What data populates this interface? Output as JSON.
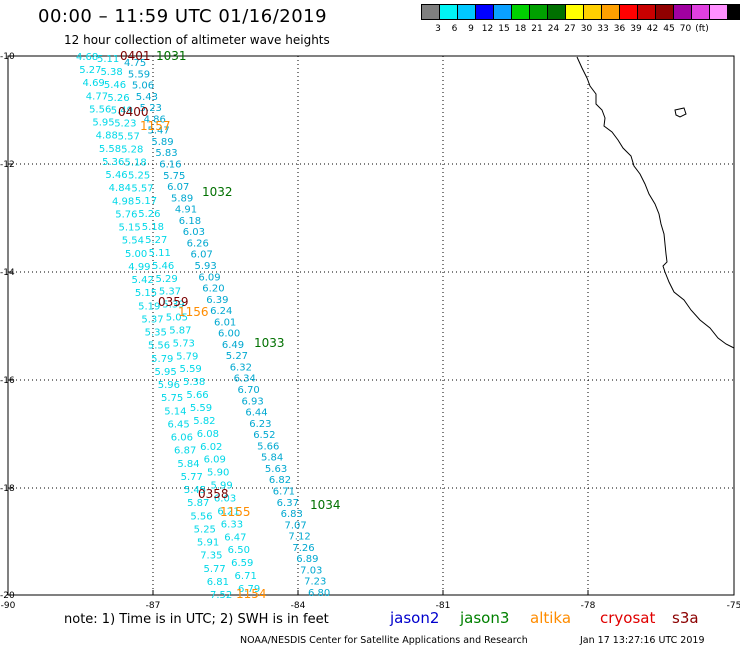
{
  "header": {
    "title": "00:00 – 11:59 UTC 01/16/2019",
    "subtitle": "12 hour collection of altimeter wave heights"
  },
  "legend": {
    "colors": [
      "#7f7f7f",
      "#00f5f5",
      "#00c8ff",
      "#0000ff",
      "#0aa0ff",
      "#00d000",
      "#00a000",
      "#007000",
      "#ffff00",
      "#ffd000",
      "#ffa000",
      "#ff0000",
      "#c80000",
      "#900000",
      "#a000a0",
      "#e040e0",
      "#ff90ff",
      "#000000"
    ],
    "labels": [
      "3",
      "6",
      "9",
      "12",
      "15",
      "18",
      "21",
      "24",
      "27",
      "30",
      "33",
      "36",
      "39",
      "42",
      "45",
      "70",
      "(ft)"
    ]
  },
  "axes": {
    "lat_labels": [
      "-10",
      "-12",
      "-14",
      "-16",
      "-18",
      "-20"
    ],
    "lon_labels": [
      "-90",
      "-87",
      "-84",
      "-81",
      "-78",
      "-75"
    ]
  },
  "tracks": [
    {
      "color": "#00d8e8",
      "id": "track-a",
      "values": [
        "4.68",
        "5.27",
        "4.69",
        "4.77",
        "5.56",
        "5.95",
        "4.88",
        "5.58",
        "5.36",
        "5.46",
        "4.84",
        "4.98",
        "5.76",
        "5.15",
        "5.54",
        "5.00",
        "4.99",
        "5.42",
        "5.15",
        "5.19",
        "5.37",
        "5.35",
        "5.56",
        "5.79",
        "5.95",
        "5.96",
        "5.75",
        "5.14",
        "6.45",
        "6.06",
        "6.87",
        "5.84",
        "5.77",
        "5.45",
        "5.87",
        "5.56",
        "5.25",
        "5.91",
        "7.35",
        "5.77",
        "6.81",
        "7.52"
      ]
    },
    {
      "color": "#00d8e8",
      "id": "track-b",
      "values": [
        "5.11",
        "5.38",
        "5.46",
        "5.26",
        "5.49",
        "5.23",
        "5.57",
        "5.28",
        "5.18",
        "5.25",
        "5.57",
        "5.17",
        "5.26",
        "5.18",
        "5.27",
        "5.11",
        "5.46",
        "5.29",
        "5.37",
        "5.39",
        "5.05",
        "5.87",
        "5.73",
        "5.79",
        "5.59",
        "5.38",
        "5.66",
        "5.59",
        "5.82",
        "6.08",
        "6.02",
        "6.09",
        "5.90",
        "5.99",
        "6.03",
        "6.21",
        "6.33",
        "6.47",
        "6.50",
        "6.59",
        "6.71",
        "6.79"
      ]
    },
    {
      "color": "#00a8d0",
      "id": "track-c",
      "values": [
        "4.75",
        "5.59",
        "5.06",
        "5.43",
        "5.23",
        "4.86",
        "5.47",
        "5.89",
        "5.83",
        "6.16",
        "5.75",
        "6.07",
        "5.89",
        "4.91",
        "6.18",
        "6.03",
        "6.26",
        "6.07",
        "5.93",
        "6.09",
        "6.20",
        "6.39",
        "6.24",
        "6.01",
        "6.00",
        "6.49",
        "5.27",
        "6.32",
        "6.34",
        "6.70",
        "6.93",
        "6.44",
        "6.23",
        "6.52",
        "5.66",
        "5.84",
        "5.63",
        "6.82",
        "6.71",
        "6.37",
        "6.83",
        "7.07",
        "7.12",
        "7.26",
        "6.89",
        "7.03",
        "7.23",
        "6.80"
      ]
    }
  ],
  "pass_times": [
    {
      "text": "0401",
      "color": "#7a0000"
    },
    {
      "text": "1031",
      "color": "#007000"
    },
    {
      "text": "0400",
      "color": "#7a0000"
    },
    {
      "text": "1157",
      "color": "#ff8c00"
    },
    {
      "text": "1032",
      "color": "#007000"
    },
    {
      "text": "0359",
      "color": "#7a0000"
    },
    {
      "text": "1156",
      "color": "#ff8c00"
    },
    {
      "text": "1033",
      "color": "#007000"
    },
    {
      "text": "0358",
      "color": "#7a0000"
    },
    {
      "text": "1155",
      "color": "#ff8c00"
    },
    {
      "text": "1034",
      "color": "#007000"
    },
    {
      "text": "1154",
      "color": "#ff8c00"
    }
  ],
  "notes": {
    "note": "note: 1) Time is in UTC; 2) SWH is in feet",
    "satellites": [
      {
        "name": "jason2",
        "color": "#0000cc"
      },
      {
        "name": "jason3",
        "color": "#008000"
      },
      {
        "name": "altika",
        "color": "#ff8c00"
      },
      {
        "name": "cryosat",
        "color": "#e00000"
      },
      {
        "name": "s3a",
        "color": "#8b0000"
      }
    ],
    "credit": "NOAA/NESDIS Center for Satellite Applications and Research",
    "generated": "Jan 17 13:27:16 UTC 2019"
  }
}
